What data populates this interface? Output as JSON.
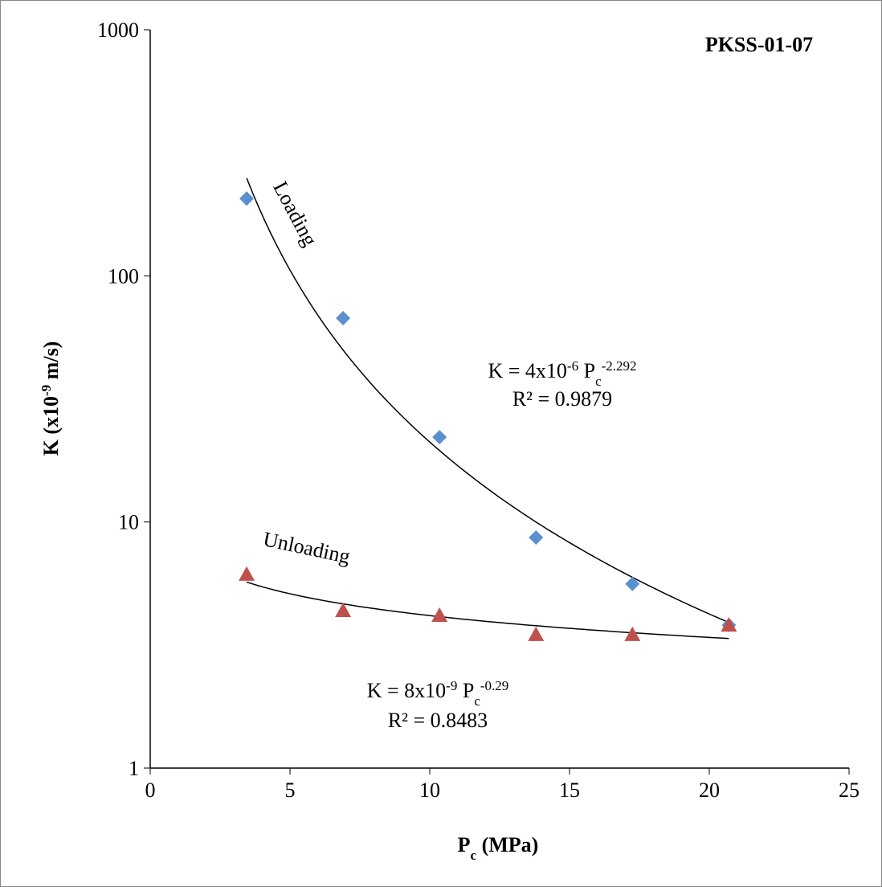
{
  "chart_data": {
    "type": "scatter",
    "title": "PKSS-01-07",
    "x_label": [
      "P",
      "c",
      " (MPa)"
    ],
    "y_label": [
      "K (x10",
      "-9",
      " m/s)"
    ],
    "x": [
      3.45,
      6.9,
      10.35,
      13.8,
      17.25,
      20.7
    ],
    "series": [
      {
        "name": "Loading",
        "color": "#5b8fd0",
        "marker": "diamond",
        "values": [
          206,
          67.3,
          22.1,
          8.65,
          5.6,
          3.81
        ],
        "equation": [
          "K = 4x10",
          "-6",
          " P",
          "c",
          "-2.292"
        ],
        "r2": "R² = 0.9879"
      },
      {
        "name": "Unloading",
        "color": "#c0504d",
        "marker": "triangle",
        "values": [
          6.08,
          4.33,
          4.14,
          3.46,
          3.46,
          3.78
        ],
        "equation": [
          "K = 8x10",
          "-9",
          " P",
          "c",
          "-0.29"
        ],
        "r2": "R² = 0.8483"
      }
    ],
    "trendline": "power",
    "xlim": [
      0,
      25
    ],
    "xticks": [
      0,
      5,
      10,
      15,
      20,
      25
    ],
    "ylim": [
      1,
      1000
    ],
    "yticks": [
      1,
      10,
      100,
      1000
    ],
    "log_y": true
  }
}
